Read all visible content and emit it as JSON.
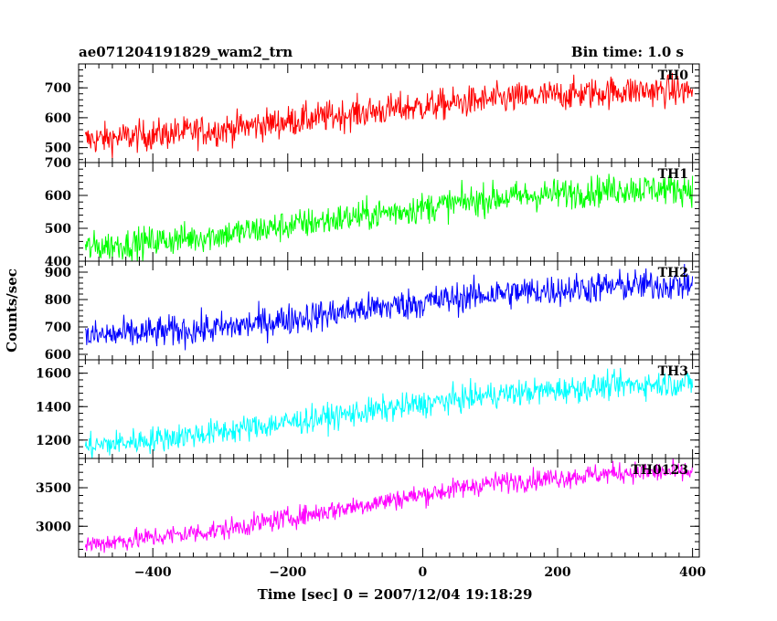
{
  "chart_data": {
    "type": "line",
    "title_left": "ae071204191829_wam2_trn",
    "title_right": "Bin time: 1.0 s",
    "xlabel": "Time [sec] 0 = 2007/12/04 19:18:29",
    "ylabel": "Counts/sec",
    "xlim": [
      -510,
      410
    ],
    "x_ticks": [
      -400,
      -200,
      0,
      200,
      400
    ],
    "x_tick_labels": [
      "−400",
      "−200",
      "0",
      "200",
      "400"
    ],
    "grid": false,
    "panels": [
      {
        "name": "TH0",
        "color": "#ff0000",
        "ylim": [
          450,
          780
        ],
        "y_ticks": [
          500,
          600,
          700
        ],
        "y_tick_labels": [
          "500",
          "600",
          "700"
        ],
        "trend": {
          "x": [
            -500,
            -300,
            -100,
            100,
            300,
            400
          ],
          "y": [
            525,
            560,
            615,
            660,
            690,
            690
          ]
        },
        "noise": 50
      },
      {
        "name": "TH1",
        "color": "#00ff00",
        "ylim": [
          400,
          700
        ],
        "y_ticks": [
          400,
          500,
          600,
          700
        ],
        "y_tick_labels": [
          "400",
          "500",
          "600",
          "700"
        ],
        "trend": {
          "x": [
            -500,
            -300,
            -100,
            100,
            300,
            400
          ],
          "y": [
            440,
            480,
            535,
            590,
            620,
            620
          ]
        },
        "noise": 45
      },
      {
        "name": "TH2",
        "color": "#0000ff",
        "ylim": [
          580,
          940
        ],
        "y_ticks": [
          600,
          700,
          800,
          900
        ],
        "y_tick_labels": [
          "600",
          "700",
          "800",
          "900"
        ],
        "trend": {
          "x": [
            -500,
            -300,
            -100,
            100,
            300,
            400
          ],
          "y": [
            665,
            695,
            760,
            820,
            850,
            855
          ]
        },
        "noise": 55
      },
      {
        "name": "TH3",
        "color": "#00ffff",
        "ylim": [
          1090,
          1680
        ],
        "y_ticks": [
          1200,
          1400,
          1600
        ],
        "y_tick_labels": [
          "1200",
          "1400",
          "1600"
        ],
        "trend": {
          "x": [
            -500,
            -300,
            -100,
            100,
            300,
            400
          ],
          "y": [
            1160,
            1250,
            1360,
            1470,
            1530,
            1540
          ]
        },
        "noise": 75
      },
      {
        "name": "TH0123",
        "color": "#ff00ff",
        "ylim": [
          2600,
          3880
        ],
        "y_ticks": [
          3000,
          3500
        ],
        "y_tick_labels": [
          "3000",
          "3500"
        ],
        "trend": {
          "x": [
            -500,
            -300,
            -100,
            100,
            300,
            400
          ],
          "y": [
            2760,
            2950,
            3260,
            3560,
            3700,
            3700
          ]
        },
        "noise": 130
      }
    ]
  }
}
